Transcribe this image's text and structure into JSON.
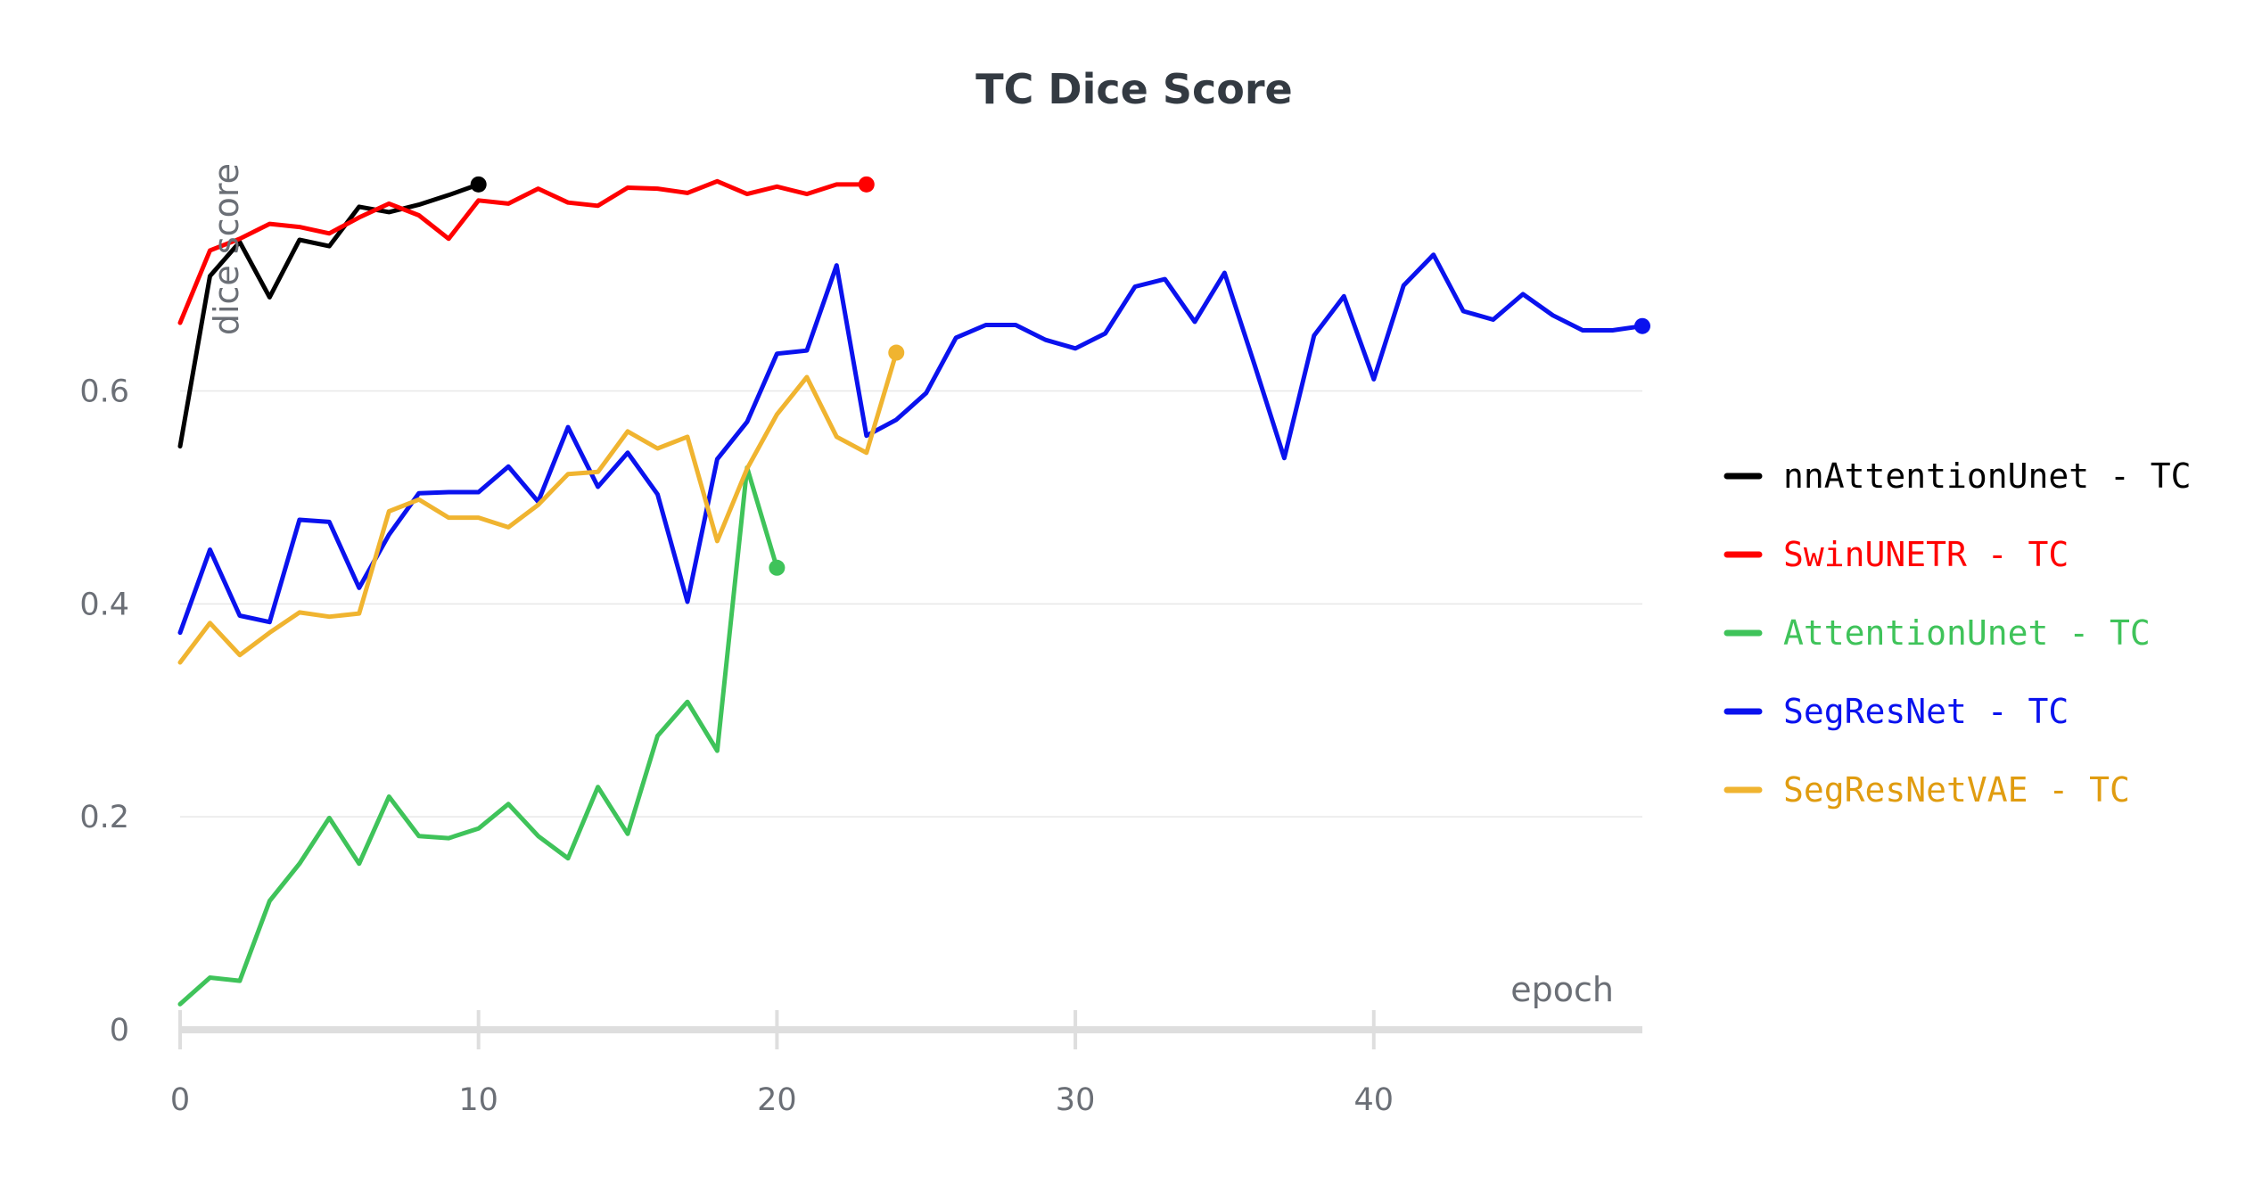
{
  "chart_data": {
    "type": "line",
    "title": "TC Dice Score",
    "xlabel": "epoch",
    "ylabel": "dice score",
    "xlim": [
      0,
      49
    ],
    "ylim": [
      0,
      0.85
    ],
    "x_ticks": [
      0,
      10,
      20,
      30,
      40
    ],
    "y_ticks": [
      0,
      0.2,
      0.4,
      0.6
    ],
    "y_tick_labels": [
      "0",
      "0.2",
      "0.4",
      "0.6"
    ],
    "grid": true,
    "legend_position": "right",
    "series": [
      {
        "name": "nnAttentionUnet - TC",
        "color": "#000000",
        "label_color": "#000000",
        "values": [
          0.548,
          0.708,
          0.74,
          0.688,
          0.742,
          0.736,
          0.773,
          0.768,
          0.775,
          0.784,
          0.794
        ]
      },
      {
        "name": "SwinUNETR - TC",
        "color": "#ff0000",
        "label_color": "#ff0000",
        "values": [
          0.664,
          0.732,
          0.743,
          0.757,
          0.754,
          0.748,
          0.763,
          0.776,
          0.765,
          0.743,
          0.779,
          0.776,
          0.79,
          0.777,
          0.774,
          0.791,
          0.79,
          0.786,
          0.797,
          0.785,
          0.792,
          0.785,
          0.794,
          0.794
        ]
      },
      {
        "name": "AttentionUnet - TC",
        "color": "#3fc35a",
        "label_color": "#3fc35a",
        "values": [
          0.024,
          0.049,
          0.046,
          0.121,
          0.156,
          0.199,
          0.156,
          0.219,
          0.182,
          0.18,
          0.189,
          0.212,
          0.182,
          0.161,
          0.228,
          0.184,
          0.276,
          0.308,
          0.262,
          0.528,
          0.434
        ]
      },
      {
        "name": "SegResNet - TC",
        "color": "#0a12ee",
        "label_color": "#0a12ee",
        "values": [
          0.373,
          0.451,
          0.389,
          0.383,
          0.479,
          0.477,
          0.415,
          0.465,
          0.504,
          0.505,
          0.505,
          0.529,
          0.496,
          0.566,
          0.51,
          0.542,
          0.503,
          0.402,
          0.536,
          0.571,
          0.635,
          0.638,
          0.718,
          0.558,
          0.573,
          0.598,
          0.65,
          0.662,
          0.662,
          0.648,
          0.64,
          0.654,
          0.698,
          0.705,
          0.665,
          0.711,
          0.625,
          0.537,
          0.652,
          0.689,
          0.611,
          0.699,
          0.728,
          0.675,
          0.667,
          0.691,
          0.671,
          0.657,
          0.657,
          0.661
        ]
      },
      {
        "name": "SegResNetVAE - TC",
        "color": "#f0b430",
        "label_color": "#e09c10",
        "values": [
          0.345,
          0.382,
          0.352,
          0.373,
          0.392,
          0.388,
          0.391,
          0.487,
          0.498,
          0.481,
          0.481,
          0.472,
          0.493,
          0.522,
          0.524,
          0.562,
          0.546,
          0.557,
          0.459,
          0.527,
          0.578,
          0.613,
          0.557,
          0.542,
          0.636
        ]
      }
    ]
  }
}
